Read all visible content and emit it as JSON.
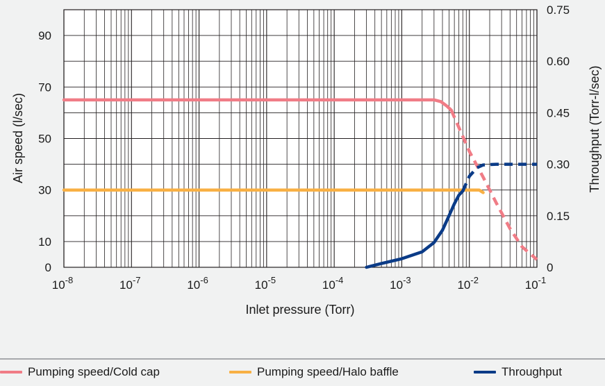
{
  "chart_data": {
    "type": "line",
    "x_scale": "log",
    "xlim": [
      "1e-8",
      "1e-1"
    ],
    "x_ticks": [
      {
        "base": "10",
        "exp": "-8"
      },
      {
        "base": "10",
        "exp": "-7"
      },
      {
        "base": "10",
        "exp": "-6"
      },
      {
        "base": "10",
        "exp": "-5"
      },
      {
        "base": "10",
        "exp": "-4"
      },
      {
        "base": "10",
        "exp": "-3"
      },
      {
        "base": "10",
        "exp": "-2"
      },
      {
        "base": "10",
        "exp": "-1"
      }
    ],
    "xlabel": "Inlet pressure (Torr)",
    "ylabel_left": "Air speed (l/sec)",
    "ylim_left": [
      0,
      100
    ],
    "y_ticks_left": [
      "0",
      "10",
      "30",
      "50",
      "70",
      "90"
    ],
    "ylabel_right": "Throughput (Torr-l/sec)",
    "ylim_right": [
      0,
      0.75
    ],
    "y_ticks_right": [
      "0",
      "0.15",
      "0.30",
      "0.45",
      "0.60",
      "0.75"
    ],
    "grid": true,
    "legend_position": "bottom",
    "series": [
      {
        "name": "Pumping speed/Cold cap",
        "color": "#f07c86",
        "axis": "left",
        "solid": [
          [
            "1e-8",
            65
          ],
          [
            "3e-3",
            65
          ],
          [
            "3.8e-3",
            64.3
          ],
          [
            "4.6e-3",
            62.7
          ],
          [
            "5.4e-3",
            61
          ]
        ],
        "dashed": [
          [
            "5.4e-3",
            61
          ],
          [
            "1e-2",
            45
          ],
          [
            "1.6e-2",
            35
          ],
          [
            "2.5e-2",
            25
          ],
          [
            "4e-2",
            15
          ],
          [
            "6e-2",
            8
          ],
          [
            "1e-1",
            3
          ]
        ]
      },
      {
        "name": "Pumping speed/Halo baffle",
        "color": "#f8b044",
        "axis": "left",
        "solid": [
          [
            "1e-8",
            30
          ],
          [
            "1.4e-2",
            30
          ],
          [
            "1.6e-2",
            29
          ]
        ],
        "dashed": []
      },
      {
        "name": "Throughput",
        "color": "#0b3b87",
        "axis": "right",
        "solid": [
          [
            "3e-4",
            0.0
          ],
          [
            "5e-4",
            0.011
          ],
          [
            "1e-3",
            0.025
          ],
          [
            "2e-3",
            0.045
          ],
          [
            "3e-3",
            0.072
          ],
          [
            "4e-3",
            0.108
          ],
          [
            "5e-3",
            0.15
          ],
          [
            "6e-3",
            0.185
          ],
          [
            "7e-3",
            0.21
          ],
          [
            "8e-3",
            0.222
          ]
        ],
        "dashed": [
          [
            "8e-3",
            0.222
          ],
          [
            "1e-2",
            0.265
          ],
          [
            "1.3e-2",
            0.29
          ],
          [
            "1.6e-2",
            0.298
          ],
          [
            "2.5e-2",
            0.3
          ],
          [
            "5e-2",
            0.3
          ],
          [
            "1e-1",
            0.3
          ]
        ]
      }
    ]
  },
  "legend": {
    "items": [
      {
        "label": "Pumping speed/Cold cap",
        "color": "#f07c86"
      },
      {
        "label": "Pumping speed/Halo baffle",
        "color": "#f8b044"
      },
      {
        "label": "Throughput",
        "color": "#0b3b87"
      }
    ]
  }
}
